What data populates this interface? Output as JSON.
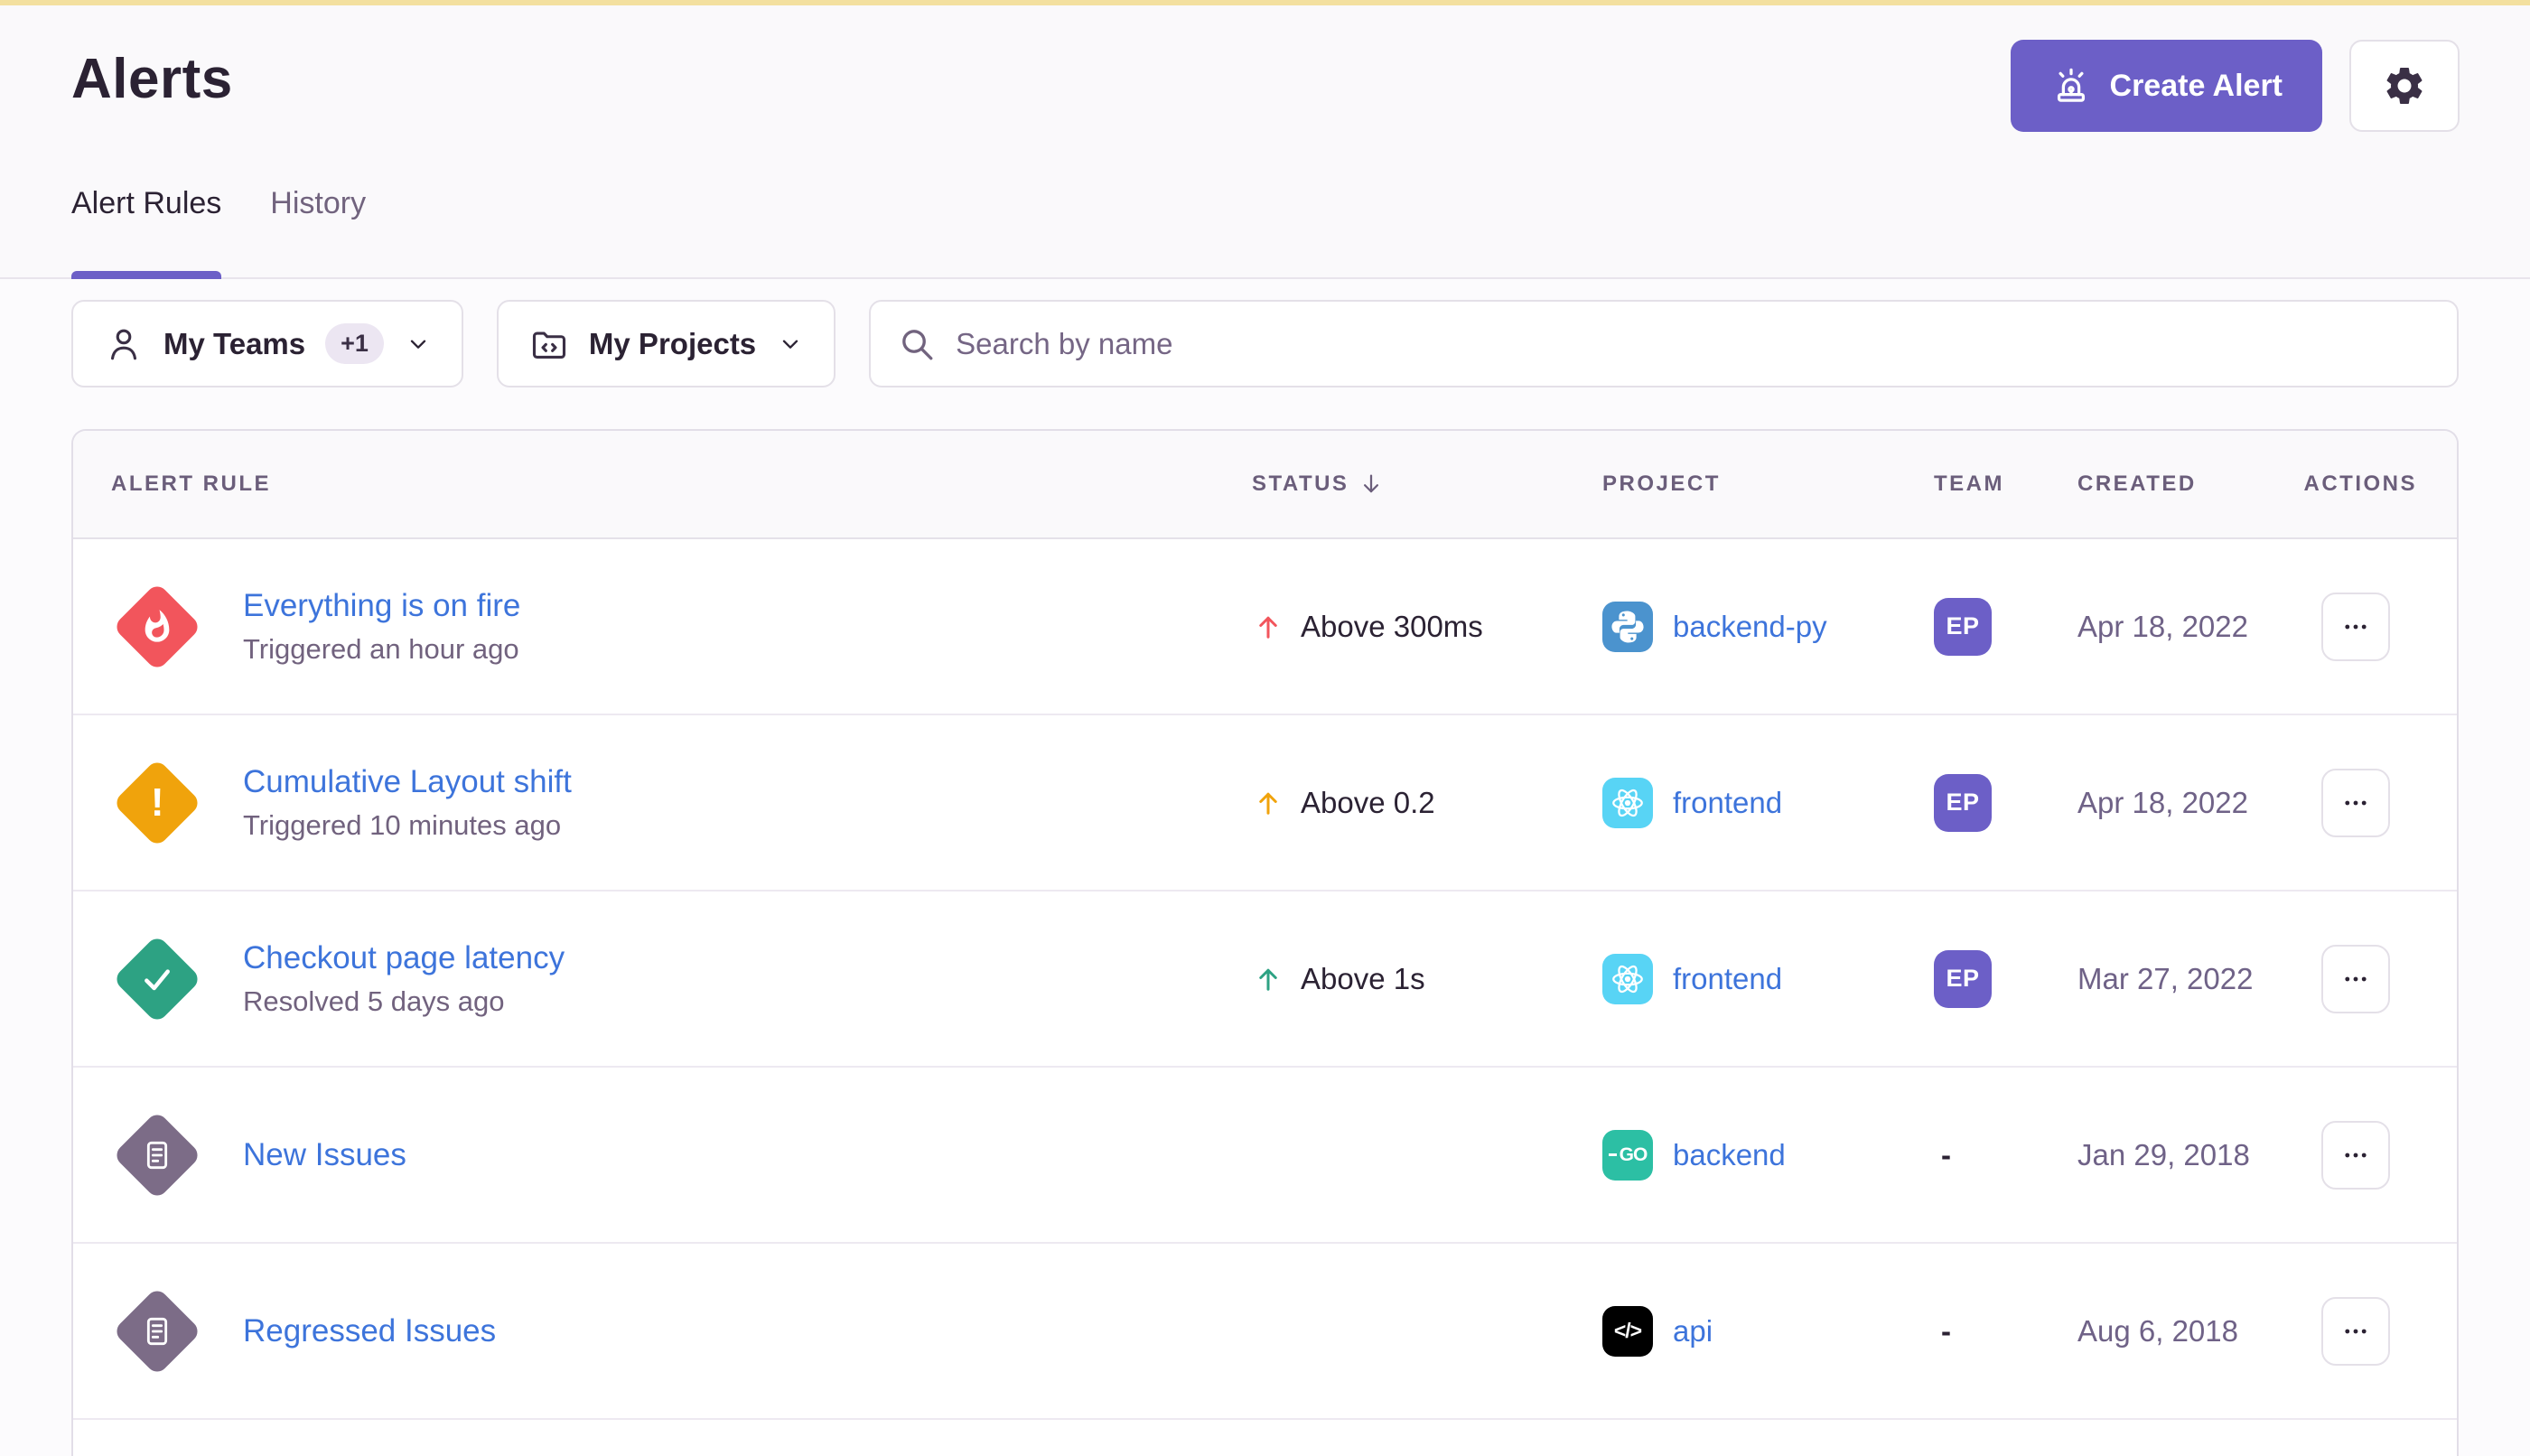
{
  "header": {
    "title": "Alerts",
    "create_alert": "Create Alert"
  },
  "tabs": {
    "alert_rules": "Alert Rules",
    "history": "History"
  },
  "filters": {
    "teams": "My Teams",
    "teams_extra": "+1",
    "projects": "My Projects",
    "search_placeholder": "Search by name"
  },
  "table": {
    "columns": [
      "Alert Rule",
      "Status",
      "Project",
      "Team",
      "Created",
      "Actions"
    ],
    "sort": {
      "column": "Status",
      "direction": "desc"
    },
    "rows": [
      {
        "name": "Everything is on fire",
        "subtitle": "Triggered an hour ago",
        "severity": "critical",
        "status": "Above 300ms",
        "project": "backend-py",
        "platform": "python",
        "team": "EP",
        "created": "Apr 18, 2022"
      },
      {
        "name": "Cumulative Layout shift",
        "subtitle": "Triggered 10 minutes ago",
        "severity": "warning",
        "status": "Above 0.2",
        "project": "frontend",
        "platform": "react",
        "team": "EP",
        "created": "Apr 18, 2022"
      },
      {
        "name": "Checkout page latency",
        "subtitle": "Resolved 5 days ago",
        "severity": "resolved",
        "status": "Above 1s",
        "project": "frontend",
        "platform": "react",
        "team": "EP",
        "created": "Mar 27, 2022"
      },
      {
        "name": "New Issues",
        "subtitle": "",
        "severity": "issue",
        "status": "",
        "project": "backend",
        "platform": "go",
        "team": "-",
        "created": "Jan 29, 2018"
      },
      {
        "name": "Regressed Issues",
        "subtitle": "",
        "severity": "issue",
        "status": "",
        "project": "api",
        "platform": "generic",
        "team": "-",
        "created": "Aug 6, 2018"
      }
    ]
  },
  "colors": {
    "brand": "#6C5FC7",
    "link": "#3D74DB",
    "critical": "#F2555C",
    "warning": "#F0A30C",
    "resolved": "#2DA283",
    "issue": "#7C6C87",
    "python": "#4B93CE",
    "react": "#58D4F5",
    "go": "#2CBFA4",
    "generic": "#000000",
    "banner": "#F3E09F"
  }
}
